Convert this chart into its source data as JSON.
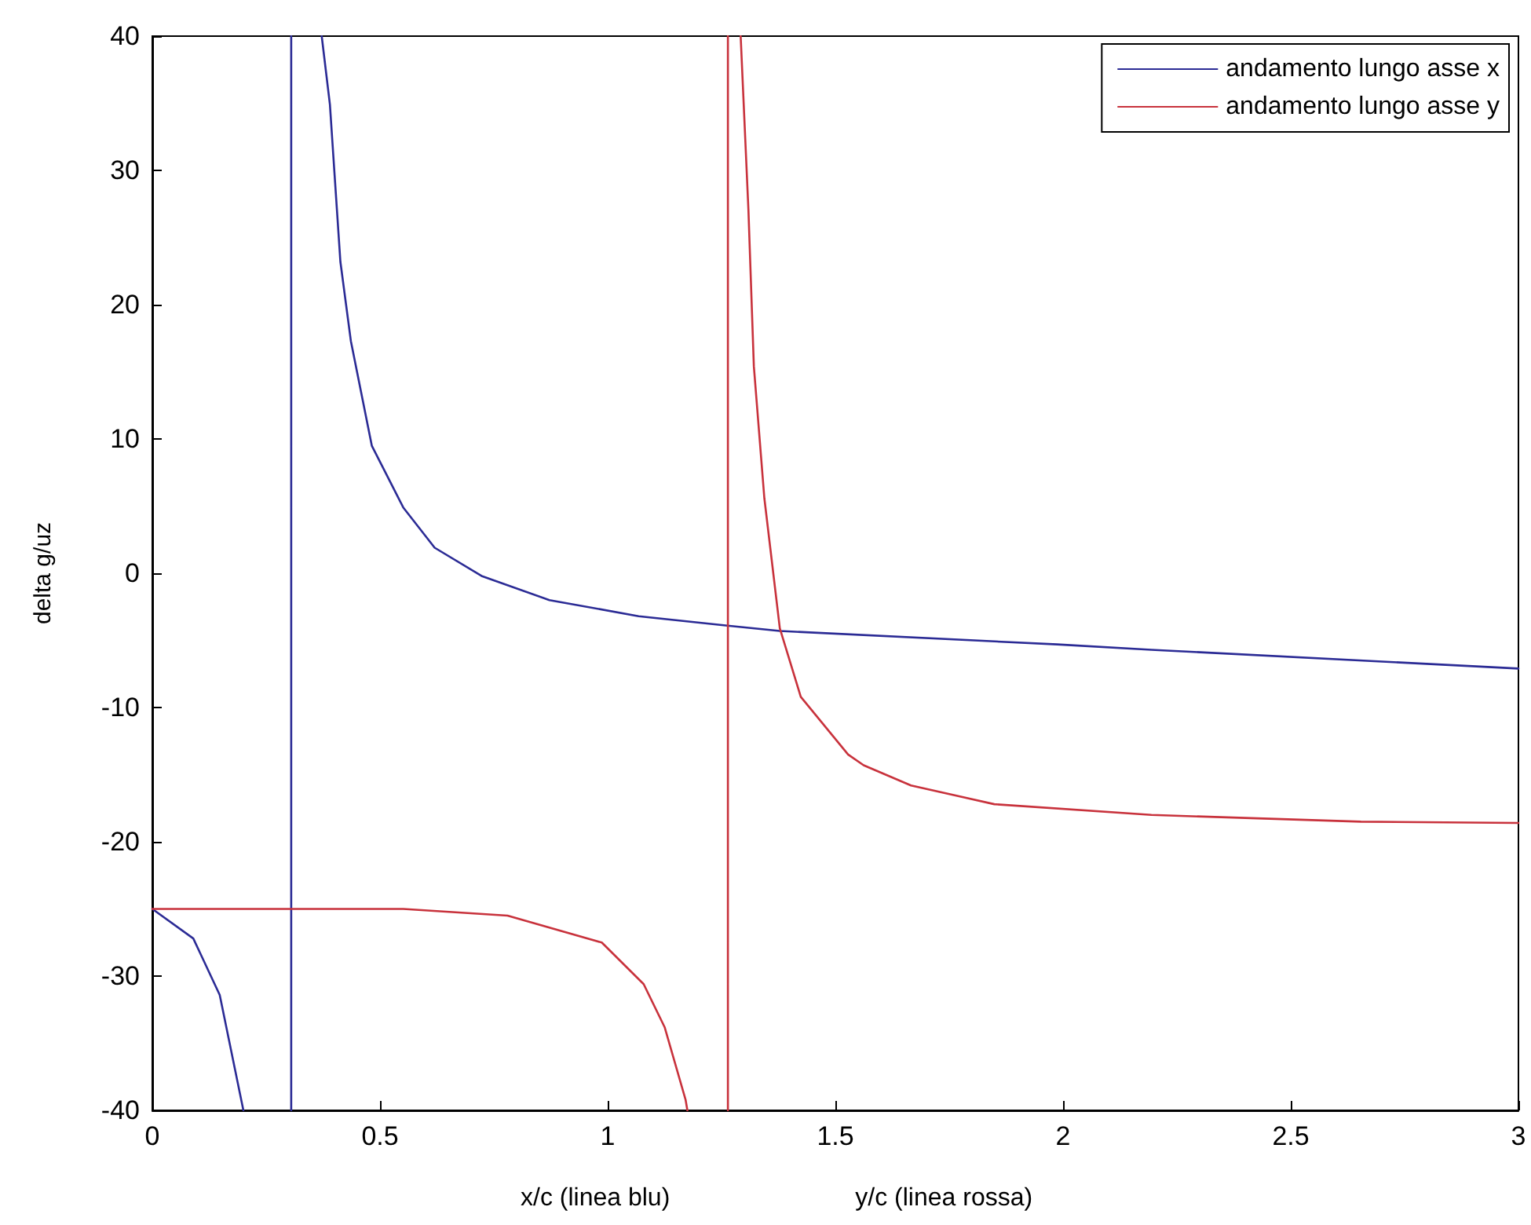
{
  "chart_data": {
    "type": "line",
    "xlabel": "x/c (linea blu)",
    "ylabel": "delta g/uz",
    "annotations": [
      "y/c (linea rossa)"
    ],
    "xlim": [
      0,
      3
    ],
    "xticks": [
      0,
      0.5,
      1,
      1.5,
      2,
      2.5,
      3
    ],
    "ylim": [
      -40,
      40
    ],
    "yticks": [
      -40,
      -30,
      -20,
      -10,
      0,
      10,
      20,
      30,
      40
    ],
    "grid": false,
    "legend": "top right",
    "marker": "none",
    "line_style": "solid",
    "series": [
      {
        "name": "andamento lungo asse x",
        "color": "#2b2b95",
        "x": [
          0,
          0.09,
          0.148,
          0.2,
          0.25,
          0.305,
          0.305,
          0.34,
          0.372,
          0.39,
          0.413,
          0.436,
          0.482,
          0.551,
          0.62,
          0.723,
          0.872,
          1.068,
          1.263,
          1.378,
          1.987,
          2.194,
          3
        ],
        "values": [
          -25,
          -27.2,
          -31.4,
          -40,
          null,
          -40,
          40,
          null,
          40,
          34.9,
          23.2,
          17.3,
          9.5,
          4.9,
          1.9,
          -0.2,
          -2.0,
          -3.2,
          -3.9,
          -4.3,
          -5.3,
          -5.7,
          -7.1
        ]
      },
      {
        "name": "andamento lungo asse y",
        "color": "#c8323c",
        "x": [
          0,
          0.3,
          0.551,
          0.78,
          0.987,
          1.079,
          1.125,
          1.171,
          1.175,
          1.22,
          1.264,
          1.264,
          1.28,
          1.292,
          1.309,
          1.321,
          1.344,
          1.378,
          1.424,
          1.528,
          1.562,
          1.666,
          1.849,
          2.194,
          2.654,
          3
        ],
        "values": [
          -25,
          -25,
          -25,
          -25.5,
          -27.5,
          -30.6,
          -33.8,
          -39.2,
          -40,
          null,
          -40,
          40,
          null,
          40,
          27.1,
          15.4,
          5.6,
          -4.1,
          -9.2,
          -13.5,
          -14.3,
          -15.8,
          -17.2,
          -18.0,
          -18.5,
          -18.6
        ]
      }
    ]
  }
}
